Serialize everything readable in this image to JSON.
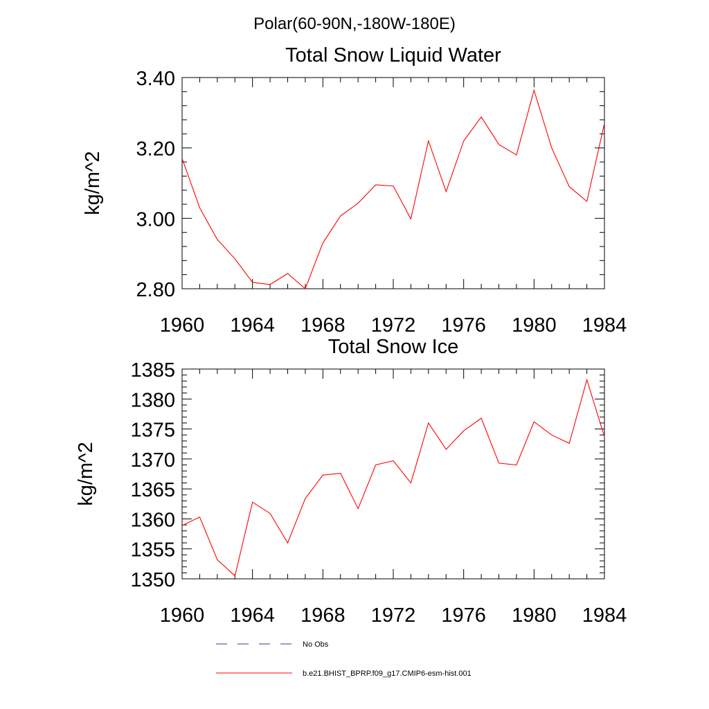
{
  "suptitle": "Polar(60-90N,-180W-180E)",
  "legend": {
    "placement": "bottom",
    "entries": [
      {
        "label": "No Obs",
        "color": "#3a3a8c",
        "style": "dashed"
      },
      {
        "label": "b.e21.BHIST_BPRP.f09_g17.CMIP6-esm-hist.001",
        "color": "#ff0000",
        "style": "solid"
      }
    ]
  },
  "chart_data": [
    {
      "type": "line",
      "title": "Total Snow Liquid Water",
      "xlabel": "",
      "ylabel": "kg/m^2",
      "xlim": [
        1960,
        1984
      ],
      "ylim": [
        2.8,
        3.4
      ],
      "xticks": [
        1960,
        1964,
        1968,
        1972,
        1976,
        1980,
        1984
      ],
      "yticks": [
        2.8,
        3.0,
        3.2,
        3.4
      ],
      "ytick_labels": [
        "2.80",
        "3.00",
        "3.20",
        "3.40"
      ],
      "grid": false,
      "series": [
        {
          "color": "#ff0000",
          "x": [
            1960,
            1961,
            1962,
            1963,
            1964,
            1965,
            1966,
            1967,
            1968,
            1969,
            1970,
            1971,
            1972,
            1973,
            1974,
            1975,
            1976,
            1977,
            1978,
            1979,
            1980,
            1981,
            1982,
            1983,
            1984
          ],
          "y": [
            3.17,
            3.03,
            2.94,
            2.885,
            2.818,
            2.812,
            2.843,
            2.8,
            2.93,
            3.007,
            3.043,
            3.095,
            3.092,
            2.998,
            3.22,
            3.076,
            3.22,
            3.288,
            3.21,
            3.18,
            3.364,
            3.2,
            3.09,
            3.048,
            3.27
          ]
        }
      ]
    },
    {
      "type": "line",
      "title": "Total Snow Ice",
      "xlabel": "",
      "ylabel": "kg/m^2",
      "xlim": [
        1960,
        1984
      ],
      "ylim": [
        1350,
        1385
      ],
      "xticks": [
        1960,
        1964,
        1968,
        1972,
        1976,
        1980,
        1984
      ],
      "yticks": [
        1350,
        1355,
        1360,
        1365,
        1370,
        1375,
        1380,
        1385
      ],
      "ytick_labels": [
        "1350",
        "1355",
        "1360",
        "1365",
        "1370",
        "1375",
        "1380",
        "1385"
      ],
      "grid": false,
      "series": [
        {
          "color": "#ff0000",
          "x": [
            1960,
            1961,
            1962,
            1963,
            1964,
            1965,
            1966,
            1967,
            1968,
            1969,
            1970,
            1971,
            1972,
            1973,
            1974,
            1975,
            1976,
            1977,
            1978,
            1979,
            1980,
            1981,
            1982,
            1983,
            1984
          ],
          "y": [
            1358.9,
            1360.3,
            1353.2,
            1350.5,
            1362.8,
            1360.9,
            1356.0,
            1363.4,
            1367.3,
            1367.6,
            1361.7,
            1369.0,
            1369.7,
            1366.0,
            1376.0,
            1371.6,
            1374.7,
            1376.8,
            1369.3,
            1369.0,
            1376.2,
            1374.0,
            1372.6,
            1383.2,
            1373.7
          ]
        }
      ]
    }
  ]
}
